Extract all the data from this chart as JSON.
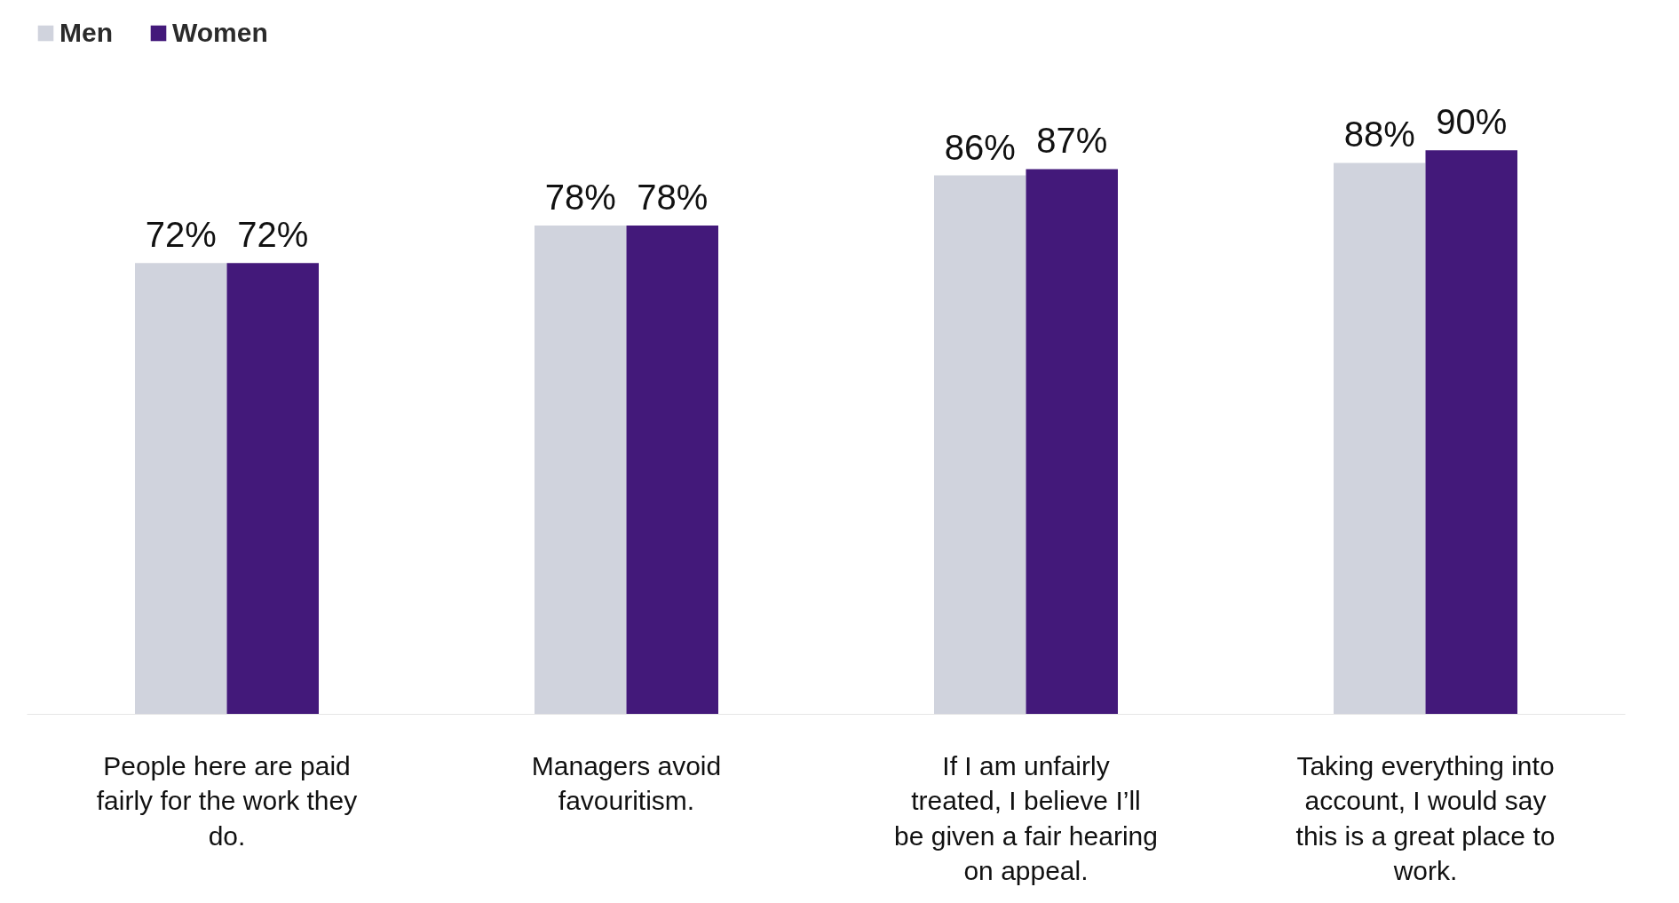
{
  "chart_data": {
    "type": "bar",
    "categories": [
      "People here are paid fairly for the work they do.",
      "Managers avoid favouritism.",
      "If I am unfairly treated, I believe I’ll be given a fair hearing on appeal.",
      "Taking everything into account, I would say this is a great place to work."
    ],
    "series": [
      {
        "name": "Men",
        "color": "#d0d3dd",
        "values": [
          72,
          78,
          86,
          88
        ],
        "value_labels": [
          "72%",
          "78%",
          "86%",
          "88%"
        ]
      },
      {
        "name": "Women",
        "color": "#43197a",
        "values": [
          72,
          78,
          87,
          90
        ],
        "value_labels": [
          "72%",
          "78%",
          "87%",
          "90%"
        ]
      }
    ],
    "legend": "top left",
    "grid": false
  }
}
